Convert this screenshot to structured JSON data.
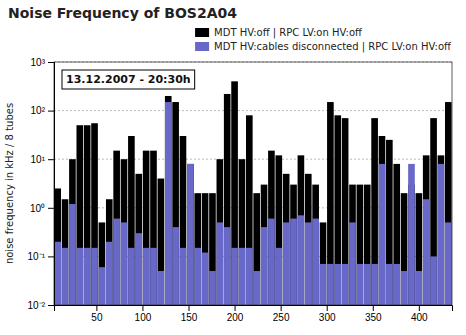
{
  "chart_data": {
    "type": "bar",
    "title": "Noise Frequency of BOS2A04",
    "annotation": "13.12.2007 - 20:30h",
    "ylabel": "noise frequency in kHz / 8 tubes",
    "x": [
      8,
      16,
      24,
      32,
      40,
      48,
      56,
      64,
      72,
      80,
      88,
      96,
      104,
      112,
      120,
      128,
      136,
      144,
      152,
      160,
      168,
      176,
      184,
      192,
      200,
      208,
      216,
      224,
      232,
      240,
      248,
      256,
      264,
      272,
      280,
      288,
      296,
      304,
      312,
      320,
      328,
      336,
      344,
      352,
      360,
      368,
      376,
      384,
      392,
      400,
      408,
      416,
      424,
      432
    ],
    "series": [
      {
        "name": "MDT HV:off | RPC LV:on HV:off",
        "color": "#000000",
        "values": [
          2.5,
          1.5,
          10,
          50,
          50,
          55,
          0.5,
          1.5,
          15,
          10,
          30,
          5,
          15,
          15,
          4,
          200,
          150,
          30,
          8,
          2,
          2,
          2,
          10,
          220,
          400,
          10,
          80,
          2,
          3,
          15,
          12,
          5,
          3,
          12,
          5,
          3,
          0.5,
          150,
          80,
          70,
          3,
          3,
          3,
          70,
          30,
          25,
          8,
          2,
          3,
          2,
          12,
          70,
          12,
          150
        ]
      },
      {
        "name": "MDT HV:cables disconnected | RPC LV:on HV:off",
        "color": "#6868c8",
        "values": [
          0.2,
          0.15,
          1.2,
          0.15,
          0.15,
          0.15,
          0.06,
          0.2,
          0.6,
          0.5,
          0.15,
          0.3,
          0.15,
          0.15,
          0.05,
          150,
          0.4,
          0.15,
          8,
          0.15,
          0.12,
          0.05,
          0.5,
          0.4,
          0.15,
          0.15,
          0.15,
          0.05,
          0.4,
          0.6,
          0.15,
          0.5,
          0.6,
          0.7,
          0.5,
          0.6,
          0.07,
          0.07,
          0.07,
          0.07,
          0.5,
          0.07,
          0.07,
          0.07,
          8,
          0.07,
          0.07,
          0.05,
          8,
          0.05,
          1.5,
          0.1,
          8,
          0.5
        ]
      }
    ],
    "xlim": [
      4,
      436
    ],
    "xticks": [
      50,
      100,
      150,
      200,
      250,
      300,
      350,
      400
    ],
    "ylim": [
      0.01,
      1000
    ],
    "yticks": [
      {
        "value": 0.01,
        "label": "10⁻²"
      },
      {
        "value": 0.1,
        "label": "10⁻¹"
      },
      {
        "value": 1,
        "label": "10⁰"
      },
      {
        "value": 10,
        "label": "10¹"
      },
      {
        "value": 100,
        "label": "10²"
      },
      {
        "value": 1000,
        "label": "10³"
      }
    ],
    "log": "y",
    "grid": true,
    "stacked": false,
    "legend": "top-right"
  }
}
